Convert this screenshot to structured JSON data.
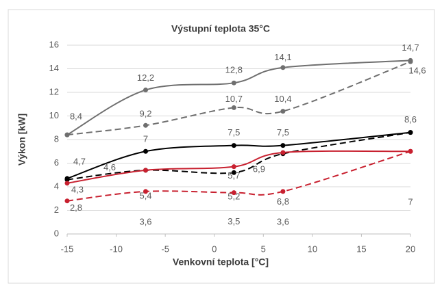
{
  "chart_data": {
    "type": "line",
    "title": "Výstupní teplota 35°C",
    "x_label": "Venkovní teplota [°C]",
    "y_label": "Výkon [kW]",
    "x": [
      -15,
      -7,
      2,
      7,
      20
    ],
    "xlim": [
      -15,
      20
    ],
    "xticks": [
      -15,
      -10,
      -5,
      0,
      5,
      10,
      15,
      20
    ],
    "ylim": [
      0,
      16
    ],
    "yticks": [
      0,
      2,
      4,
      6,
      8,
      10,
      12,
      14,
      16
    ],
    "grid": true,
    "smooth": true,
    "series": [
      {
        "color": "#6f6f6f",
        "dashed": false,
        "values": [
          8.4,
          12.2,
          12.8,
          14.1,
          14.7
        ],
        "value_labels": [
          "8,4",
          "12,2",
          "12,8",
          "14,1",
          "14,7"
        ]
      },
      {
        "color": "#6f6f6f",
        "dashed": true,
        "values": [
          8.4,
          9.2,
          10.7,
          10.4,
          14.6
        ],
        "value_labels": [
          null,
          "9,2",
          "10,7",
          "10,4",
          "14,6"
        ]
      },
      {
        "color": "#000000",
        "dashed": false,
        "values": [
          4.7,
          7,
          7.5,
          7.5,
          8.6
        ],
        "value_labels": [
          "4,7",
          "7",
          "7,5",
          "7,5",
          "8,6"
        ]
      },
      {
        "color": "#000000",
        "dashed": true,
        "values": [
          4.6,
          5.4,
          5.2,
          6.8,
          8.6
        ],
        "value_labels": [
          "4,6",
          "5,4",
          "5,2",
          "6,8",
          null
        ]
      },
      {
        "color": "#c8202f",
        "dashed": false,
        "values": [
          4.3,
          5.4,
          5.7,
          6.9,
          7
        ],
        "value_labels": [
          "4,3",
          null,
          "5,7",
          "6,9",
          "7"
        ]
      },
      {
        "color": "#c8202f",
        "dashed": true,
        "values": [
          2.8,
          3.6,
          3.5,
          3.6,
          7
        ],
        "value_labels": [
          "2,8",
          "3,6",
          "3,5",
          "3,6",
          null
        ]
      }
    ]
  }
}
